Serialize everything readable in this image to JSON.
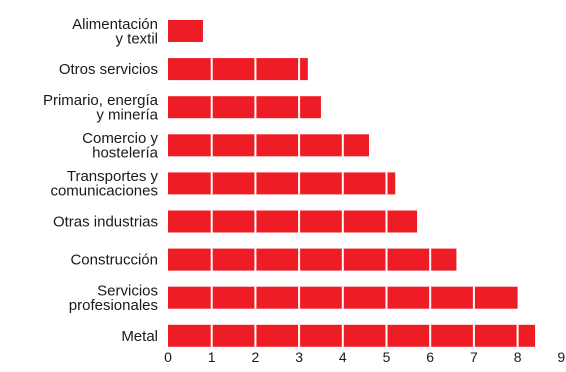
{
  "chart_data": {
    "type": "bar",
    "orientation": "horizontal",
    "title": "",
    "xlabel": "",
    "ylabel": "",
    "categories": [
      [
        "Alimentación",
        "y textil"
      ],
      [
        "Otros servicios"
      ],
      [
        "Primario, energía",
        "y minería"
      ],
      [
        "Comercio y",
        "hostelería"
      ],
      [
        "Transportes y",
        "comunicaciones"
      ],
      [
        "Otras industrias"
      ],
      [
        "Construcción"
      ],
      [
        "Servicios",
        "profesionales"
      ],
      [
        "Metal"
      ]
    ],
    "values": [
      0.8,
      3.2,
      3.5,
      4.6,
      5.2,
      5.7,
      6.6,
      8.0,
      8.4
    ],
    "xlim": [
      0,
      9
    ],
    "xticks": [
      "0",
      "1",
      "2",
      "3",
      "4",
      "5",
      "6",
      "7",
      "8",
      "9"
    ],
    "grid": false,
    "bar_color": "#ee1c25",
    "segment_divider_color": "#ffffff"
  }
}
